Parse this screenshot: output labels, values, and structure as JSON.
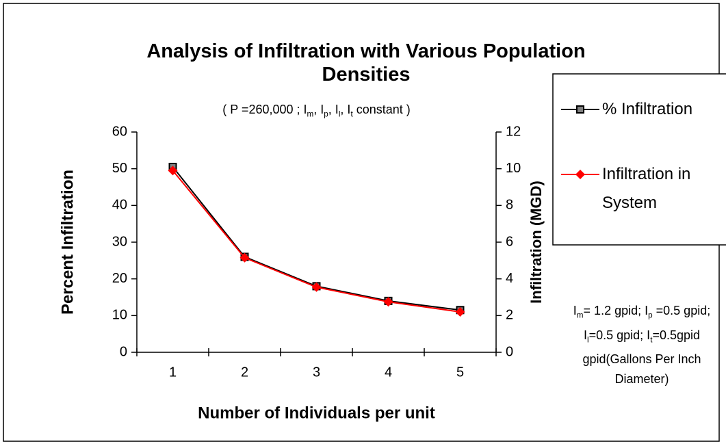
{
  "chart_data": {
    "type": "line",
    "title": "Analysis of Infiltration with Various Population Densities",
    "subtitle": [
      "( P =260,000 ; I",
      "m",
      ", I",
      "p",
      ", I",
      "l",
      ", I",
      "t",
      "  constant )"
    ],
    "x_label": "Number of Individuals per unit",
    "y_label": "Percent Infiltration",
    "y2_label": "Infiltration (MGD)",
    "categories": [
      "1",
      "2",
      "3",
      "4",
      "5"
    ],
    "series": [
      {
        "name": "% Infiltration",
        "color": "#000000",
        "marker": "square",
        "values": [
          50.5,
          26,
          18,
          14,
          11.5
        ]
      },
      {
        "name": "Infiltration in System",
        "color": "#ff0000",
        "marker": "diamond",
        "axis": "y2",
        "values": [
          9.9,
          5.15,
          3.55,
          2.75,
          2.2
        ]
      }
    ],
    "ylim": [
      0,
      60
    ],
    "yticks": [
      0,
      10,
      20,
      30,
      40,
      50,
      60
    ],
    "y2lim": [
      0,
      12
    ],
    "y2ticks": [
      0,
      2,
      4,
      6,
      8,
      10,
      12
    ],
    "annotation": [
      "I",
      "m",
      "= 1.2 gpid; I",
      "p",
      " =0.5 gpid; I",
      "l",
      "=0.5 gpid; I",
      "t",
      "=0.5gpid gpid(Gallons Per Inch Diameter)"
    ]
  }
}
